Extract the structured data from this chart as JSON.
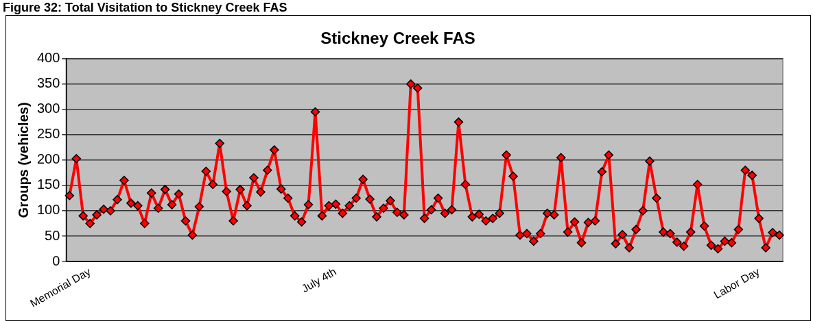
{
  "chart_data": {
    "type": "line",
    "title": "Stickney Creek FAS",
    "ylabel": "Groups (vehicles)",
    "annotations": [
      "Figure 32: Total Visitation to Stickney Creek FAS"
    ],
    "categories": [
      null,
      null,
      null,
      "Memorial Day",
      null,
      null,
      null,
      null,
      null,
      null,
      null,
      null,
      null,
      null,
      null,
      null,
      null,
      null,
      null,
      null,
      null,
      null,
      null,
      null,
      null,
      null,
      null,
      null,
      null,
      null,
      null,
      null,
      null,
      null,
      null,
      null,
      null,
      null,
      null,
      "July 4th",
      null,
      null,
      null,
      null,
      null,
      null,
      null,
      null,
      null,
      null,
      null,
      null,
      null,
      null,
      null,
      null,
      null,
      null,
      null,
      null,
      null,
      null,
      null,
      null,
      null,
      null,
      null,
      null,
      null,
      null,
      null,
      null,
      null,
      null,
      null,
      null,
      null,
      null,
      null,
      null,
      null,
      null,
      null,
      null,
      null,
      null,
      null,
      null,
      null,
      null,
      null,
      null,
      null,
      null,
      null,
      null,
      null,
      null,
      null,
      null,
      null,
      "Labor Day",
      null,
      null,
      null
    ],
    "series": [
      {
        "color": "#ff0000",
        "values": [
          130,
          203,
          90,
          75,
          92,
          103,
          100,
          122,
          160,
          115,
          110,
          75,
          135,
          105,
          142,
          112,
          133,
          80,
          52,
          108,
          178,
          152,
          233,
          138,
          80,
          142,
          110,
          165,
          137,
          180,
          220,
          143,
          125,
          90,
          78,
          112,
          295,
          90,
          110,
          113,
          95,
          110,
          125,
          162,
          123,
          88,
          105,
          120,
          97,
          92,
          350,
          342,
          85,
          102,
          125,
          95,
          102,
          275,
          152,
          88,
          93,
          80,
          85,
          95,
          210,
          168,
          52,
          55,
          40,
          55,
          95,
          92,
          205,
          58,
          78,
          37,
          77,
          80,
          177,
          210,
          35,
          53,
          27,
          63,
          100,
          198,
          125,
          58,
          55,
          38,
          30,
          58,
          152,
          70,
          32,
          25,
          40,
          37,
          63,
          180,
          170,
          85,
          27,
          57,
          52
        ]
      }
    ],
    "ylim": [
      0,
      400
    ],
    "yticks": [
      0,
      50,
      100,
      150,
      200,
      250,
      300,
      350,
      400
    ],
    "grid": "y",
    "marker": "diamond",
    "line_style": "solid"
  }
}
